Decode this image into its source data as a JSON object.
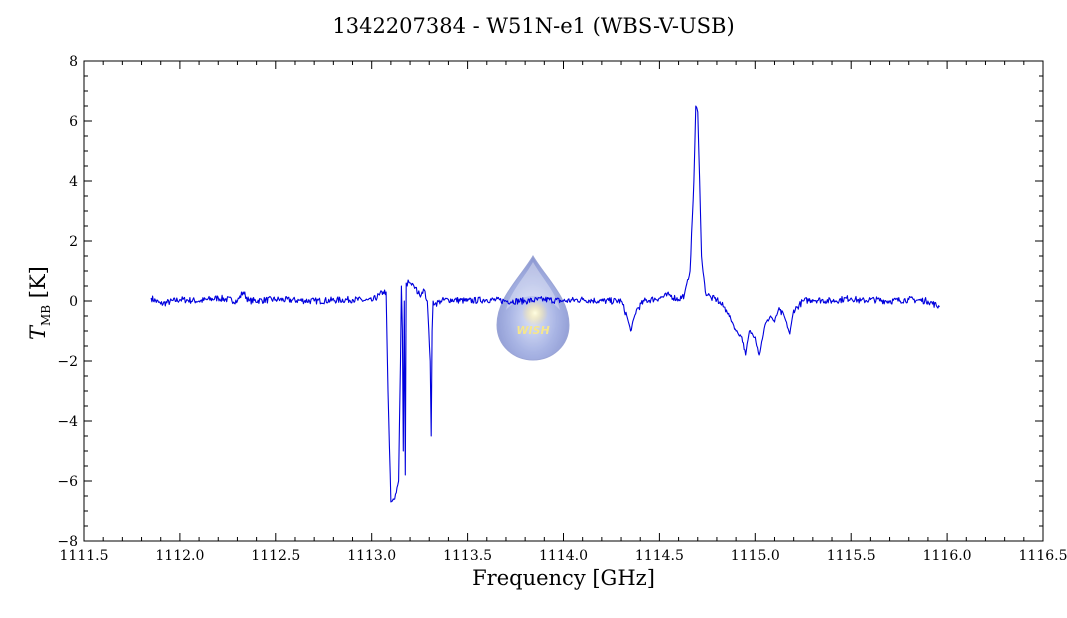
{
  "chart_data": {
    "type": "line",
    "title": "1342207384 - W51N-e1 (WBS-V-USB)",
    "xlabel": "Frequency [GHz]",
    "ylabel_main": "T",
    "ylabel_sub": "MB",
    "ylabel_unit": " [K]",
    "xlim": [
      1111.5,
      1116.5
    ],
    "ylim": [
      -8,
      8
    ],
    "x_ticks": [
      1111.5,
      1112.0,
      1112.5,
      1113.0,
      1113.5,
      1114.0,
      1114.5,
      1115.0,
      1115.5,
      1116.0,
      1116.5
    ],
    "y_ticks": [
      -8,
      -6,
      -4,
      -2,
      0,
      2,
      4,
      6,
      8
    ],
    "x_minor_step": 0.1,
    "y_minor_step": 0.5,
    "grid": false,
    "series": [
      {
        "color": "#0000dd",
        "x": [
          1111.85,
          1111.9,
          1112.0,
          1112.1,
          1112.2,
          1112.3,
          1112.33,
          1112.36,
          1112.5,
          1112.7,
          1112.9,
          1113.0,
          1113.04,
          1113.06,
          1113.075,
          1113.085,
          1113.1,
          1113.12,
          1113.14,
          1113.15,
          1113.155,
          1113.16,
          1113.165,
          1113.17,
          1113.175,
          1113.18,
          1113.185,
          1113.19,
          1113.2,
          1113.22,
          1113.25,
          1113.27,
          1113.29,
          1113.305,
          1113.31,
          1113.315,
          1113.32,
          1113.33,
          1113.36,
          1113.4,
          1113.5,
          1113.6,
          1113.7,
          1113.8,
          1113.9,
          1114.0,
          1114.1,
          1114.2,
          1114.3,
          1114.33,
          1114.35,
          1114.38,
          1114.42,
          1114.5,
          1114.55,
          1114.6,
          1114.63,
          1114.66,
          1114.68,
          1114.69,
          1114.7,
          1114.71,
          1114.72,
          1114.74,
          1114.77,
          1114.8,
          1114.85,
          1114.88,
          1114.9,
          1114.93,
          1114.95,
          1114.97,
          1115.0,
          1115.02,
          1115.05,
          1115.08,
          1115.1,
          1115.12,
          1115.15,
          1115.18,
          1115.2,
          1115.22,
          1115.25,
          1115.3,
          1115.4,
          1115.5,
          1115.55,
          1115.6,
          1115.7,
          1115.8,
          1115.9,
          1115.96
        ],
        "y": [
          0.1,
          -0.1,
          0.05,
          0.0,
          0.1,
          0.0,
          0.3,
          0.0,
          0.05,
          0.0,
          0.05,
          0.0,
          0.2,
          0.3,
          0.3,
          -3.0,
          -6.7,
          -6.6,
          -6.0,
          -2.0,
          0.5,
          -1.0,
          -5.0,
          0.0,
          -5.8,
          0.6,
          0.5,
          0.7,
          0.6,
          0.5,
          0.2,
          0.4,
          0.0,
          -2.0,
          -4.5,
          -1.0,
          0.0,
          -0.1,
          0.0,
          0.05,
          0.0,
          0.05,
          0.0,
          0.0,
          0.05,
          0.0,
          0.05,
          0.0,
          0.0,
          -0.5,
          -1.0,
          -0.3,
          0.0,
          0.1,
          0.2,
          0.05,
          0.2,
          1.0,
          4.0,
          6.5,
          6.3,
          4.0,
          1.5,
          0.3,
          0.1,
          0.05,
          -0.3,
          -0.7,
          -1.0,
          -1.2,
          -1.8,
          -1.0,
          -1.2,
          -1.8,
          -0.8,
          -0.5,
          -0.7,
          -0.3,
          -0.5,
          -1.1,
          -0.3,
          -0.2,
          0.0,
          0.05,
          0.0,
          0.1,
          0.0,
          0.05,
          0.0,
          0.05,
          0.0,
          -0.2
        ]
      }
    ],
    "watermark_label": "WISH"
  }
}
